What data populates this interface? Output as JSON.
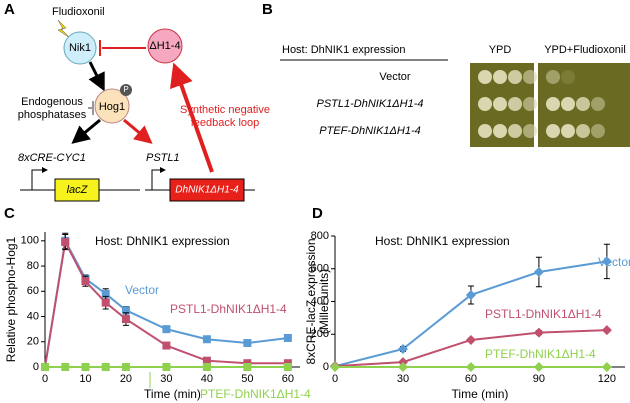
{
  "panel_labels": [
    "A",
    "B",
    "C",
    "D"
  ],
  "diagram": {
    "fludioxonil": "Fludioxonil",
    "nik1": "Nik1",
    "dh": "ΔH1-4",
    "hog1": "Hog1",
    "phospho": "P",
    "phosphatases": [
      "Endogenous",
      "phosphatases"
    ],
    "promoter1": "8xCRE-CYC1",
    "promoter2": "PSTL1",
    "gene1": "lacZ",
    "gene2": "DhNIK1ΔH1-4",
    "loop": [
      "Synthetic negative",
      "feedback loop"
    ]
  },
  "spot_assay": {
    "host": "Host: DhNIK1 expression",
    "media": [
      "YPD",
      "YPD+Fludioxonil"
    ],
    "rows": [
      "Vector",
      "PSTL1-DhNIK1ΔH1-4",
      "PTEF-DhNIK1ΔH1-4"
    ]
  },
  "chart_data": [
    {
      "type": "line",
      "annotation": "Host: DhNIK1 expression",
      "x_label": "Time (min)",
      "y_label": "Relative phospho-Hog1",
      "x": [
        0,
        5,
        10,
        15,
        20,
        30,
        40,
        50,
        60
      ],
      "xlim": [
        0,
        63
      ],
      "xticks": [
        0,
        10,
        20,
        30,
        40,
        50,
        60
      ],
      "ylim": [
        0,
        107
      ],
      "yticks": [
        0,
        20,
        40,
        60,
        80,
        100
      ],
      "marker": "square",
      "series": [
        {
          "name": "Vector",
          "color": "#5b9bd5",
          "values": [
            0,
            100,
            70,
            58,
            45,
            30,
            22,
            19,
            23
          ],
          "errors": [
            0,
            6,
            3,
            4,
            3,
            2,
            2,
            2,
            2
          ]
        },
        {
          "name": "PSTL1-DhNIK1ΔH1-4",
          "color": "#c0506e",
          "values": [
            0,
            99,
            68,
            51,
            38,
            17,
            5,
            3,
            3
          ],
          "errors": [
            0,
            6,
            4,
            5,
            5,
            2,
            1,
            1,
            1
          ]
        },
        {
          "name": "PTEF-DhNIK1ΔH1-4",
          "color": "#8fd14f",
          "values": [
            0,
            0,
            0,
            0,
            0,
            0,
            0,
            0,
            0
          ]
        }
      ]
    },
    {
      "type": "line",
      "annotation": "Host: DhNIK1 expression",
      "x_label": "Time (min)",
      "y_label": [
        "8xCRE-lacZ expression",
        "(Miller units)"
      ],
      "x": [
        0,
        30,
        60,
        90,
        120
      ],
      "xlim": [
        0,
        128
      ],
      "xticks": [
        0,
        30,
        60,
        90,
        120
      ],
      "ylim": [
        0,
        800
      ],
      "yticks": [
        0,
        200,
        400,
        600,
        800
      ],
      "marker": "diamond",
      "series": [
        {
          "name": "Vector",
          "color": "#5b9bd5",
          "values": [
            5,
            110,
            440,
            580,
            645
          ],
          "errors": [
            0,
            15,
            55,
            90,
            105
          ]
        },
        {
          "name": "PSTL1-DhNIK1ΔH1-4",
          "color": "#c0506e",
          "values": [
            5,
            30,
            165,
            210,
            225
          ],
          "errors": [
            0,
            5,
            10,
            12,
            10
          ]
        },
        {
          "name": "PTEF-DhNIK1ΔH1-4",
          "color": "#8fd14f",
          "values": [
            0,
            0,
            0,
            0,
            0
          ]
        }
      ]
    }
  ]
}
